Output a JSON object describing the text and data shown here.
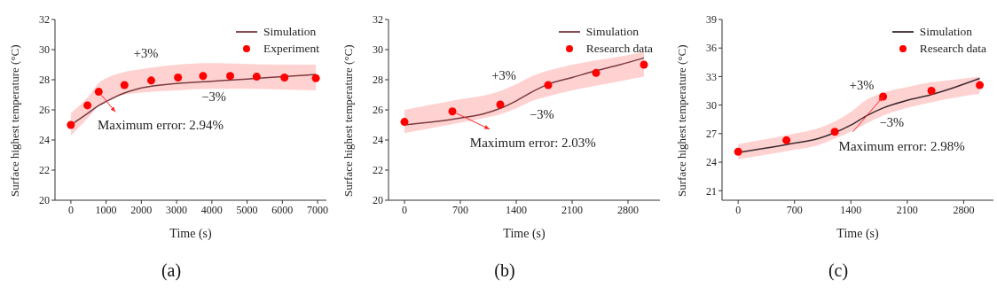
{
  "chart_data": [
    {
      "type": "line",
      "title": "(a)",
      "xlabel": "Time (s)",
      "ylabel": "Surface highest temperature (°C)",
      "xlim": [
        -450,
        7250
      ],
      "xticks": [
        0,
        1000,
        2000,
        3000,
        4000,
        5000,
        6000,
        7000
      ],
      "ylim": [
        20,
        32
      ],
      "yticks": [
        20,
        22,
        24,
        26,
        28,
        30,
        32
      ],
      "grid": false,
      "legend": "top right",
      "series": [
        {
          "name": "Simulation",
          "color": "#7a3a3e",
          "marker": "none",
          "x": [
            0,
            500,
            800,
            1000,
            1500,
            2000,
            3000,
            4000,
            5000,
            6000,
            6950
          ],
          "values": [
            25.0,
            25.8,
            26.3,
            26.55,
            27.1,
            27.45,
            27.75,
            27.9,
            28.05,
            28.2,
            28.35
          ],
          "lower": [
            24.3,
            25.5,
            26.3,
            26.6,
            27.0,
            27.15,
            27.3,
            27.4,
            27.4,
            27.35,
            27.3
          ],
          "upper": [
            25.8,
            26.9,
            27.8,
            28.1,
            28.5,
            28.7,
            29.0,
            29.1,
            29.05,
            29.0,
            29.0
          ]
        },
        {
          "name": "Experiment",
          "type": "scatter",
          "color": "#ff0000",
          "marker": "circle",
          "x": [
            0,
            470,
            790,
            1520,
            2280,
            3040,
            3750,
            4520,
            5270,
            6060,
            6950
          ],
          "values": [
            25.0,
            26.3,
            27.2,
            27.65,
            27.95,
            28.15,
            28.25,
            28.25,
            28.2,
            28.15,
            28.1
          ]
        }
      ],
      "annotations": [
        "+3%",
        "−3%",
        {
          "text": "Maximum error: 2.94%",
          "x": 790,
          "y": 27.2
        }
      ]
    },
    {
      "type": "line",
      "title": "(b)",
      "xlabel": "Time (s)",
      "ylabel": "Surface highest temperature (°C)",
      "xlim": [
        -200,
        3200
      ],
      "xticks": [
        0,
        700,
        1400,
        2100,
        2800
      ],
      "ylim": [
        20,
        32
      ],
      "yticks": [
        20,
        22,
        24,
        26,
        28,
        30,
        32
      ],
      "grid": false,
      "legend": "top right",
      "series": [
        {
          "name": "Simulation",
          "color": "#7a3a3e",
          "marker": "none",
          "x": [
            0,
            700,
            1000,
            1200,
            1400,
            1600,
            1800,
            2100,
            2400,
            2700,
            3000
          ],
          "values": [
            25.0,
            25.45,
            25.75,
            26.1,
            26.6,
            27.2,
            27.7,
            28.15,
            28.6,
            29.0,
            29.45
          ],
          "lower": [
            24.45,
            25.15,
            25.45,
            25.7,
            26.1,
            26.6,
            26.9,
            27.3,
            27.6,
            27.9,
            28.2
          ],
          "upper": [
            26.0,
            26.7,
            26.95,
            27.25,
            27.7,
            28.25,
            28.6,
            29.0,
            29.3,
            29.55,
            29.85
          ]
        },
        {
          "name": "Research data",
          "type": "scatter",
          "color": "#ff0000",
          "marker": "circle",
          "x": [
            0,
            600,
            1200,
            1800,
            2400,
            3000
          ],
          "values": [
            25.2,
            25.9,
            26.35,
            27.65,
            28.45,
            29.0
          ]
        }
      ],
      "annotations": [
        "+3%",
        "−3%",
        {
          "text": "Maximum error: 2.03%",
          "x": 600,
          "y": 25.9
        }
      ]
    },
    {
      "type": "line",
      "title": "(c)",
      "xlabel": "Time (s)",
      "ylabel": "Surface highest temperature (°C)",
      "xlim": [
        -200,
        3170
      ],
      "xticks": [
        0,
        700,
        1400,
        2100,
        2800
      ],
      "ylim": [
        20,
        39
      ],
      "yticks": [
        21,
        24,
        27,
        30,
        33,
        36,
        39
      ],
      "grid": false,
      "legend": "top right",
      "series": [
        {
          "name": "Simulation",
          "color": "#3a2a2e",
          "marker": "none",
          "x": [
            0,
            700,
            1000,
            1200,
            1400,
            1600,
            1800,
            2100,
            2400,
            2700,
            3000
          ],
          "values": [
            25.0,
            26.0,
            26.5,
            27.1,
            27.9,
            28.9,
            29.7,
            30.5,
            31.1,
            31.9,
            32.8
          ],
          "lower": [
            24.3,
            25.3,
            25.8,
            26.5,
            27.2,
            28.1,
            28.9,
            29.7,
            30.3,
            30.8,
            31.2
          ],
          "upper": [
            25.9,
            27.0,
            27.6,
            28.3,
            29.3,
            30.6,
            31.3,
            31.9,
            32.4,
            32.7,
            33.0
          ]
        },
        {
          "name": "Research data",
          "type": "scatter",
          "color": "#ff0000",
          "marker": "circle",
          "x": [
            0,
            600,
            1200,
            1800,
            2400,
            3000
          ],
          "values": [
            25.1,
            26.3,
            27.2,
            30.9,
            31.5,
            32.1
          ]
        }
      ],
      "annotations": [
        "+3%",
        "−3%",
        {
          "text": "Maximum error: 2.98%",
          "x": 1800,
          "y": 30.9
        }
      ]
    }
  ]
}
